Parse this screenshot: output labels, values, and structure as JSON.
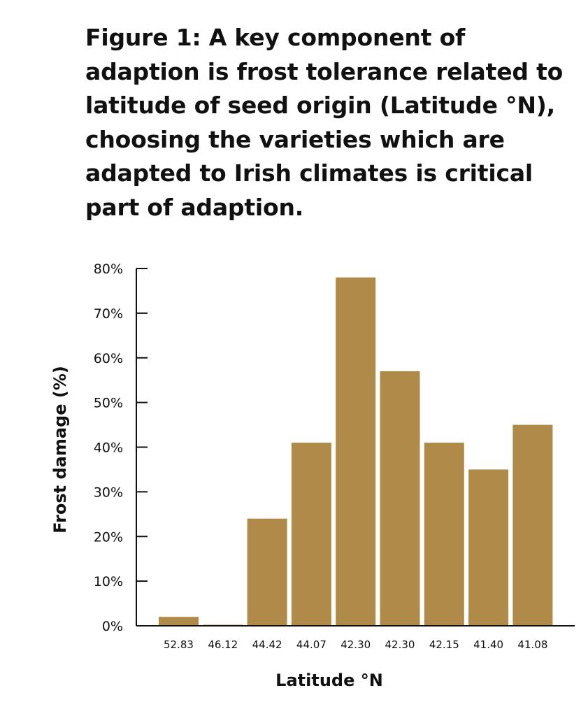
{
  "caption": "Figure 1: A key component of adaption is frost tolerance related to latitude of seed origin (Latitude °N), choosing the varieties which are adapted to Irish climates is critical part of adaption.",
  "chart_data": {
    "type": "bar",
    "title": "",
    "xlabel": "Latitude °N",
    "ylabel": "Frost damage (%)",
    "categories": [
      "52.83",
      "46.12",
      "44.42",
      "44.07",
      "42.30",
      "42.30",
      "42.15",
      "41.40",
      "41.08"
    ],
    "values": [
      2,
      0.2,
      24,
      41,
      78,
      57,
      41,
      35,
      45
    ],
    "ylim": [
      0,
      80
    ],
    "yticks": [
      0,
      10,
      20,
      30,
      40,
      50,
      60,
      70,
      80
    ],
    "ytick_labels": [
      "0%",
      "10%",
      "20%",
      "30%",
      "40%",
      "50%",
      "60%",
      "70%",
      "80%"
    ],
    "grid": false,
    "legend": "none",
    "bar_color": "#b08a48",
    "axis_color": "#111111"
  }
}
